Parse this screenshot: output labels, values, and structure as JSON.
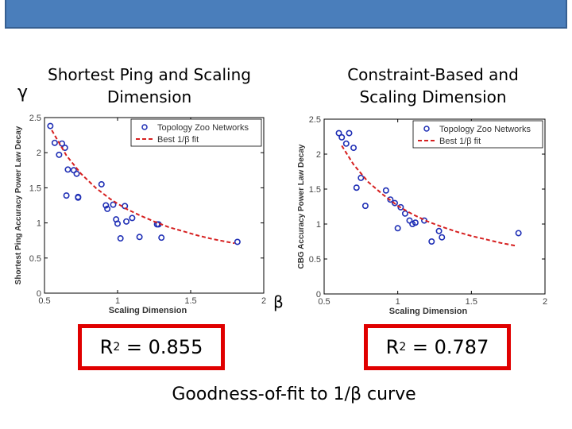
{
  "header": {
    "color": "#4a7ebb"
  },
  "labels": {
    "gamma": "γ",
    "beta": "β"
  },
  "titles": {
    "left": "Shortest Ping and Scaling\nDimension",
    "right": "Constraint-Based and\nScaling Dimension"
  },
  "r2": {
    "left_prefix": "R",
    "left_exp": "2",
    "left_value": " = 0.855",
    "right_prefix": "R",
    "right_exp": "2",
    "right_value": " = 0.787"
  },
  "footer": "Goodness-of-fit to 1/β curve",
  "colors": {
    "points": "#1f2fb5",
    "fit": "#d62020",
    "box": "#e00000"
  },
  "chart_data": [
    {
      "type": "scatter",
      "title": "",
      "xlabel": "Scaling Dimension",
      "ylabel": "Shortest Ping Accuracy Power Law Decay",
      "xlim": [
        0.5,
        2
      ],
      "ylim": [
        0,
        2.5
      ],
      "xticks": [
        "0.5",
        "1",
        "1.5",
        "2"
      ],
      "yticks": [
        "0",
        "0.5",
        "1",
        "1.5",
        "2",
        "2.5"
      ],
      "legend": {
        "position": "top-right",
        "entries": [
          "Topology Zoo Networks",
          "Best 1/β fit"
        ]
      },
      "series": [
        {
          "name": "Topology Zoo Networks",
          "kind": "points",
          "x": [
            0.54,
            0.57,
            0.6,
            0.62,
            0.64,
            0.66,
            0.7,
            0.72,
            0.73,
            0.65,
            0.73,
            0.89,
            0.92,
            0.93,
            0.97,
            0.99,
            1.0,
            1.02,
            1.05,
            1.1,
            1.15,
            1.28,
            1.3,
            1.27,
            1.82,
            1.06
          ],
          "y": [
            2.38,
            2.14,
            1.97,
            2.13,
            2.07,
            1.76,
            1.75,
            1.7,
            1.36,
            1.39,
            1.37,
            1.55,
            1.25,
            1.2,
            1.26,
            1.05,
            0.99,
            0.78,
            1.24,
            1.07,
            0.8,
            0.98,
            0.79,
            0.98,
            0.73,
            1.02
          ]
        },
        {
          "name": "Best 1/β fit",
          "kind": "fit",
          "x": [
            0.55,
            0.65,
            0.75,
            0.85,
            0.95,
            1.05,
            1.15,
            1.25,
            1.35,
            1.45,
            1.55,
            1.65,
            1.75,
            1.8
          ],
          "y": [
            2.32,
            1.96,
            1.7,
            1.5,
            1.34,
            1.21,
            1.11,
            1.02,
            0.94,
            0.88,
            0.82,
            0.77,
            0.73,
            0.71
          ]
        }
      ]
    },
    {
      "type": "scatter",
      "title": "",
      "xlabel": "Scaling Dimension",
      "ylabel": "CBG Accuracy Power Law Decay",
      "xlim": [
        0.5,
        2
      ],
      "ylim": [
        0,
        2.5
      ],
      "xticks": [
        "0.5",
        "1",
        "1.5",
        "2"
      ],
      "yticks": [
        "0",
        "0.5",
        "1",
        "1.5",
        "2",
        "2.5"
      ],
      "legend": {
        "position": "top-right",
        "entries": [
          "Topology Zoo Networks",
          "Best 1/β fit"
        ]
      },
      "series": [
        {
          "name": "Topology Zoo Networks",
          "kind": "points",
          "x": [
            0.6,
            0.62,
            0.65,
            0.67,
            0.7,
            0.72,
            0.75,
            0.78,
            0.92,
            0.95,
            0.98,
            1.0,
            1.02,
            1.05,
            1.08,
            1.1,
            1.12,
            1.18,
            1.23,
            1.28,
            1.3,
            1.82
          ],
          "y": [
            2.3,
            2.24,
            2.15,
            2.3,
            2.09,
            1.52,
            1.66,
            1.26,
            1.48,
            1.35,
            1.3,
            0.94,
            1.24,
            1.15,
            1.05,
            1.0,
            1.02,
            1.05,
            0.75,
            0.9,
            0.81,
            0.87
          ]
        },
        {
          "name": "Best 1/β fit",
          "kind": "fit",
          "x": [
            0.62,
            0.7,
            0.8,
            0.9,
            1.0,
            1.1,
            1.2,
            1.3,
            1.4,
            1.5,
            1.6,
            1.7,
            1.8
          ],
          "y": [
            2.12,
            1.85,
            1.6,
            1.42,
            1.26,
            1.14,
            1.04,
            0.96,
            0.89,
            0.83,
            0.78,
            0.73,
            0.69
          ]
        }
      ]
    }
  ]
}
